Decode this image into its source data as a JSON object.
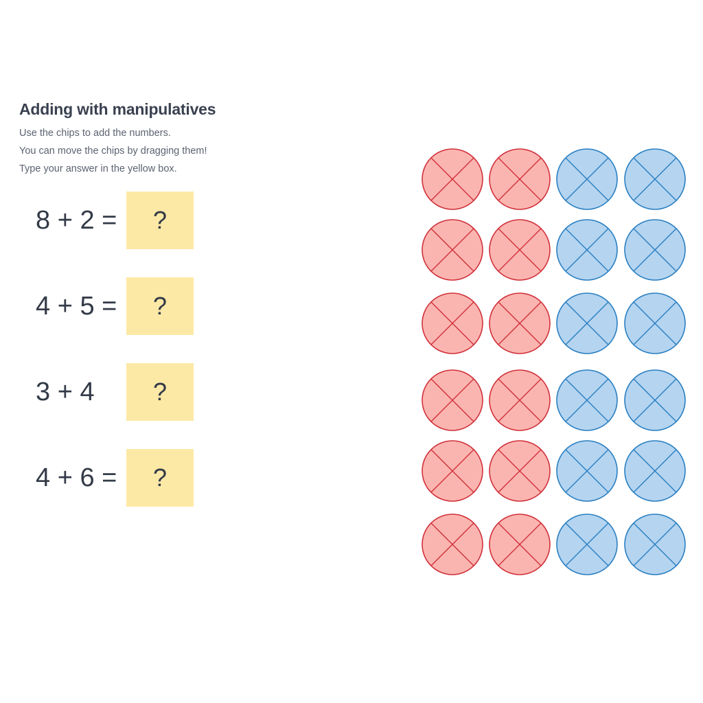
{
  "header": {
    "title": "Adding with manipulatives",
    "instructions": [
      "Use the chips to add the numbers.",
      "You can move the chips by dragging them!",
      "Type your answer in the yellow box."
    ]
  },
  "problems": [
    {
      "equation": "8 + 2 =",
      "answer_placeholder": "?"
    },
    {
      "equation": "4 + 5 =",
      "answer_placeholder": "?"
    },
    {
      "equation": "3 + 4",
      "answer_placeholder": "?"
    },
    {
      "equation": "4 + 6 =",
      "answer_placeholder": "?"
    }
  ],
  "chips": {
    "rows": 6,
    "columns": [
      "red",
      "red",
      "blue",
      "blue"
    ],
    "colors": {
      "red": {
        "fill": "#fbb5b1",
        "stroke": "#d0313a"
      },
      "blue": {
        "fill": "#b4d4f0",
        "stroke": "#2a7fc1"
      }
    },
    "icon": "x-mark-chip-icon"
  }
}
